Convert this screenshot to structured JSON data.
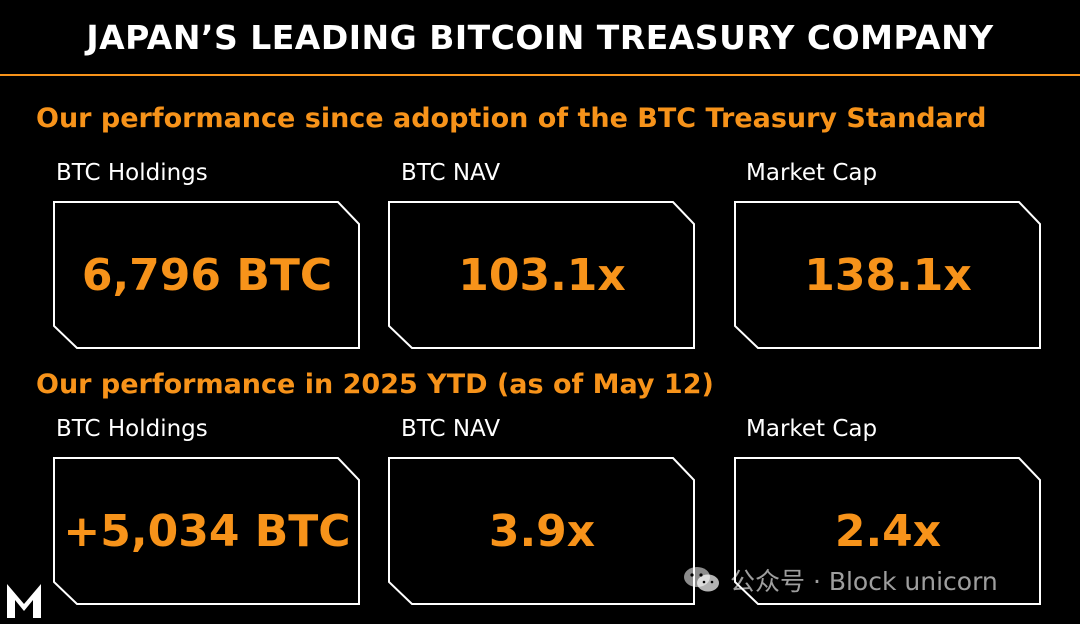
{
  "header": {
    "title": "JAPAN’S LEADING BITCOIN TREASURY COMPANY"
  },
  "sections": [
    {
      "heading": "Our performance since adoption of the BTC Treasury Standard",
      "metrics": [
        {
          "label": "BTC Holdings",
          "value": "6,796 BTC"
        },
        {
          "label": "BTC NAV",
          "value": "103.1x"
        },
        {
          "label": "Market Cap",
          "value": "138.1x"
        }
      ]
    },
    {
      "heading": "Our performance in 2025 YTD (as of May 12)",
      "metrics": [
        {
          "label": "BTC Holdings",
          "value": "+5,034 BTC"
        },
        {
          "label": "BTC NAV",
          "value": "3.9x"
        },
        {
          "label": "Market Cap",
          "value": "2.4x"
        }
      ]
    }
  ],
  "watermark": {
    "text": "公众号 · Block unicorn",
    "icon": "wechat-icon"
  },
  "logo": {
    "icon": "m-logo-icon"
  },
  "colors": {
    "accent": "#f7931a",
    "background": "#000000",
    "text": "#ffffff",
    "card_border": "#ffffff"
  }
}
